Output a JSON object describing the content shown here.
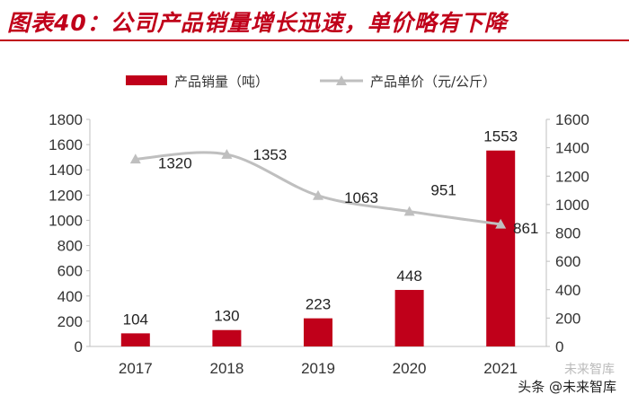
{
  "header": {
    "title": "图表40：公司产品销量增长迅速，单价略有下降"
  },
  "chart_data": {
    "type": "bar",
    "categories": [
      "2017",
      "2018",
      "2019",
      "2020",
      "2021"
    ],
    "series": [
      {
        "name": "产品销量（吨）",
        "type": "bar",
        "axis": "left",
        "values": [
          104,
          130,
          223,
          448,
          1553
        ],
        "color": "#c0001a"
      },
      {
        "name": "产品单价（元/公斤）",
        "type": "line",
        "axis": "right",
        "values": [
          1320,
          1353,
          1063,
          951,
          861
        ],
        "color": "#bfbfbf"
      }
    ],
    "left_axis": {
      "ylim": [
        0,
        1800
      ],
      "ticks": [
        "0",
        "200",
        "400",
        "600",
        "800",
        "1000",
        "1200",
        "1400",
        "1600",
        "1800"
      ]
    },
    "right_axis": {
      "ylim": [
        0,
        1600
      ],
      "ticks": [
        "0",
        "200",
        "400",
        "600",
        "800",
        "1000",
        "1200",
        "1400",
        "1600"
      ]
    },
    "legend": "top-center"
  },
  "watermark": {
    "text": "头条 @未来智库",
    "faint": "未来智库"
  }
}
